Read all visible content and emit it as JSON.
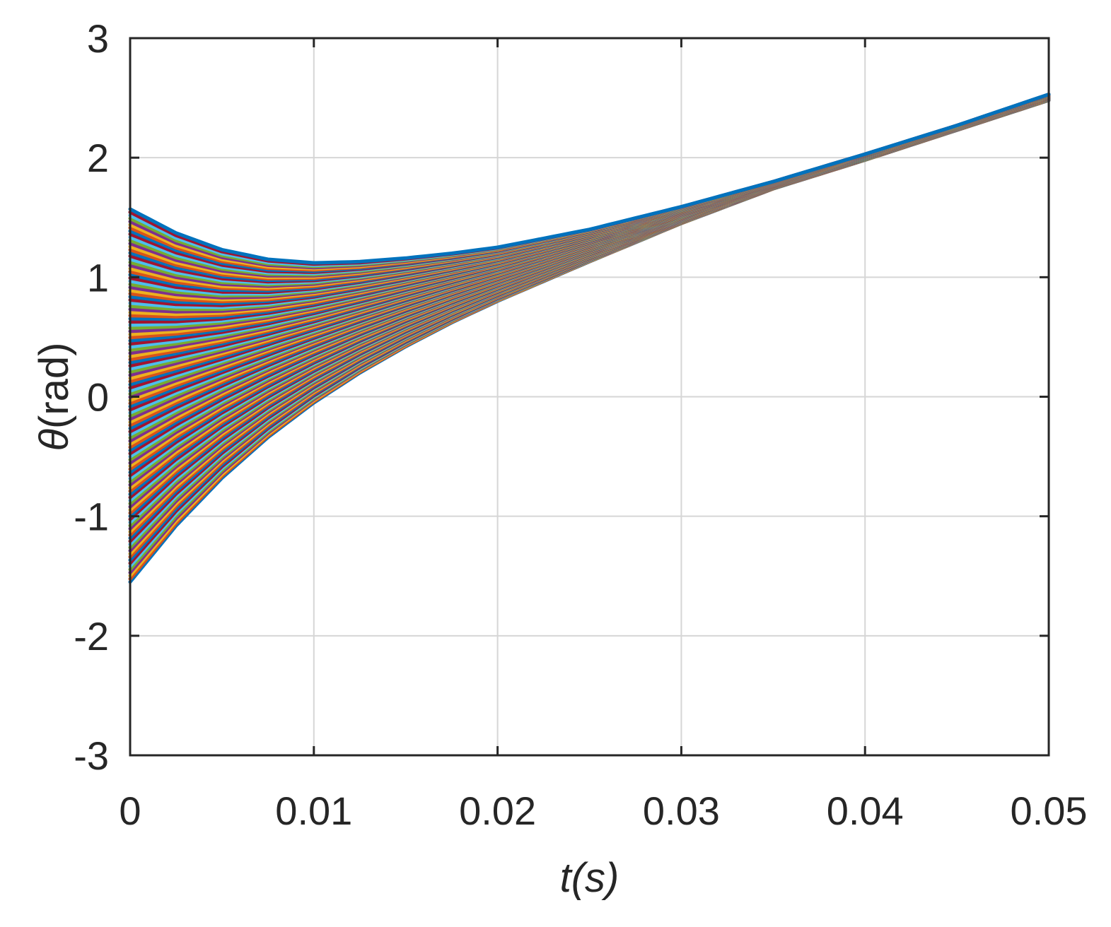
{
  "chart_data": {
    "type": "line",
    "title": "",
    "xlabel": "t(s)",
    "ylabel_symbol": "θ",
    "ylabel_unit": "(rad)",
    "xlim": [
      0,
      0.05
    ],
    "ylim": [
      -3,
      3
    ],
    "xticks": [
      0,
      0.01,
      0.02,
      0.03,
      0.04,
      0.05
    ],
    "xtick_labels": [
      "0",
      "0.01",
      "0.02",
      "0.03",
      "0.04",
      "0.05"
    ],
    "yticks": [
      -3,
      -2,
      -1,
      0,
      1,
      2,
      3
    ],
    "ytick_labels": [
      "-3",
      "-2",
      "-1",
      "0",
      "1",
      "2",
      "3"
    ],
    "grid": true,
    "legend": "none",
    "colors": [
      "#0072BD",
      "#D95319",
      "#EDB120",
      "#7E2F8E",
      "#77AC30",
      "#4DBEEE",
      "#A2142F"
    ],
    "x": [
      0,
      0.0025,
      0.005,
      0.0075,
      0.01,
      0.0125,
      0.015,
      0.0175,
      0.02,
      0.025,
      0.03,
      0.035,
      0.04,
      0.045,
      0.05
    ],
    "series_note_count": 120,
    "family": {
      "initial_theta_min": -1.55,
      "initial_theta_max": 1.57,
      "final_theta_min": 2.48,
      "final_theta_max": 2.53,
      "envelope_upper": [
        1.57,
        1.37,
        1.23,
        1.15,
        1.12,
        1.13,
        1.16,
        1.2,
        1.25,
        1.4,
        1.59,
        1.8,
        2.03,
        2.27,
        2.53
      ],
      "envelope_lower": [
        -1.55,
        -1.08,
        -0.68,
        -0.34,
        -0.05,
        0.2,
        0.42,
        0.62,
        0.8,
        1.13,
        1.45,
        1.74,
        1.98,
        2.23,
        2.48
      ]
    }
  }
}
